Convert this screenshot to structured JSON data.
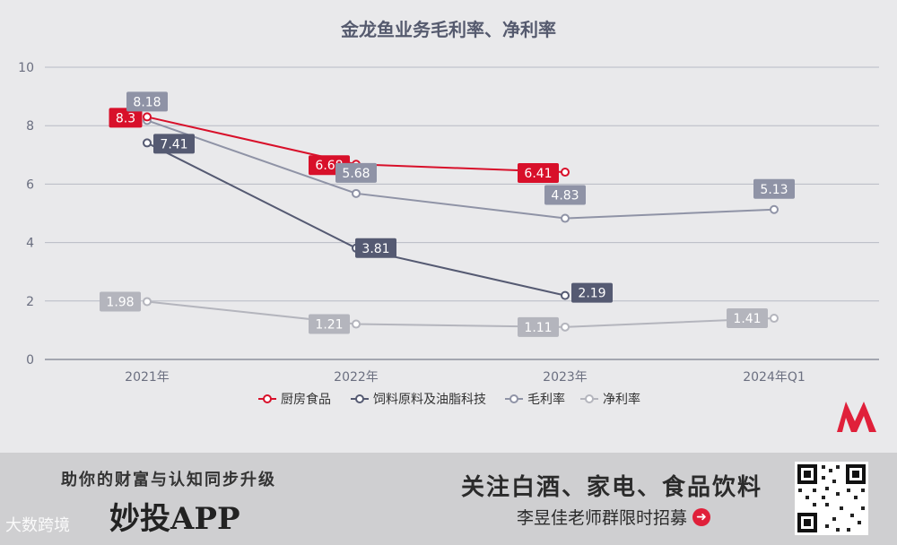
{
  "chart_data": {
    "type": "line",
    "title": "金龙鱼业务毛利率、净利率",
    "categories": [
      "2021年",
      "2022年",
      "2023年",
      "2024年Q1"
    ],
    "ylim": [
      0,
      10
    ],
    "yticks": [
      0,
      2,
      4,
      6,
      8,
      10
    ],
    "grid": true,
    "legend_position": "bottom",
    "series": [
      {
        "name": "厨房食品",
        "values": [
          8.3,
          6.68,
          6.41,
          null
        ],
        "color": "#d8102a",
        "labels": [
          "8.3",
          "6.68",
          "6.41",
          null
        ]
      },
      {
        "name": "饲料原料及油脂科技",
        "values": [
          7.41,
          3.81,
          2.19,
          null
        ],
        "color": "#555a72",
        "labels": [
          "7.41",
          "3.81",
          "2.19",
          null
        ]
      },
      {
        "name": "毛利率",
        "values": [
          8.18,
          5.68,
          4.83,
          5.13
        ],
        "color": "#8f93a6",
        "labels": [
          "8.18",
          "5.68",
          "4.83",
          "5.13"
        ]
      },
      {
        "name": "净利率",
        "values": [
          1.98,
          1.21,
          1.11,
          1.41
        ],
        "color": "#b4b5bd",
        "labels": [
          "1.98",
          "1.21",
          "1.11",
          "1.41"
        ]
      }
    ]
  },
  "banner": {
    "slogan": "助你的财富与认知同步升级",
    "app_name": "妙投APP",
    "headline": "关注白酒、家电、食品饮料",
    "recruit": "李昱佳老师群限时招募",
    "watermark": "大数跨境"
  },
  "icons": {
    "recruit_arrow": "arrow-right-circle-icon",
    "brand_logo": "m-logo-icon",
    "qr": "qr-code-icon"
  }
}
